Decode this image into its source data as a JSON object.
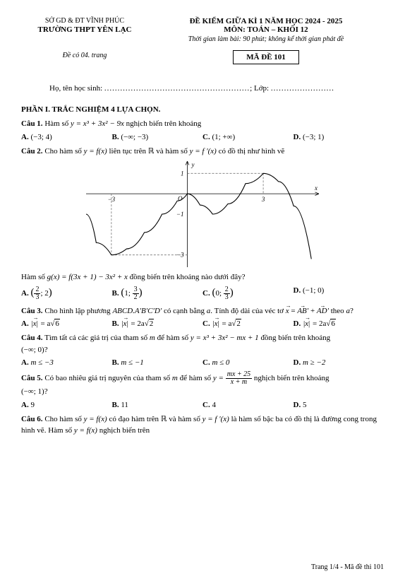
{
  "header": {
    "department": "SỞ GD & ĐT VĨNH PHÚC",
    "school": "TRƯỜNG THPT YÊN LẠC",
    "page_note": "Đề có 04. trang",
    "exam_title": "ĐỀ KIỂM GIỮA KÌ 1 NĂM HỌC 2024 - 2025",
    "subject": "MÔN: TOÁN – KHỐI 12",
    "time": "Thời gian làm bài: 90 phút; không kể thời gian phát đề",
    "code_label": "MÃ ĐỀ 101"
  },
  "name_line": {
    "prefix": "Họ, tên học sinh: ",
    "dots1": ".......................................................",
    "class_prefix": "; Lớp: ",
    "dots2": "........................"
  },
  "section1_title": "PHẦN I. TRẮC NGHIỆM 4 LỰA CHỌN.",
  "q1": {
    "label": "Câu 1.",
    "stem_a": " Hàm số ",
    "formula": "y = x³ + 3x² − 9x",
    "stem_b": " nghịch biến trên khoảng",
    "A": "(−3; 4)",
    "B": "(−∞; −3)",
    "C": "(1; +∞)",
    "D": "(−3; 1)"
  },
  "q2": {
    "label": "Câu 2.",
    "stem_a": " Cho hàm số ",
    "f1": "y = f(x)",
    "stem_b": " liên tục trên ",
    "R": "ℝ",
    "stem_c": " và hàm số ",
    "f2": "y = f ′(x)",
    "stem_d": " có đồ thị như hình vẽ",
    "graph": {
      "x_range": [
        -4,
        5.2
      ],
      "y_range": [
        -3.6,
        1.6
      ],
      "ticks_x": [
        -3,
        3
      ],
      "ticks_y": [
        1,
        -1,
        -3
      ],
      "curve_color": "#000000",
      "axis_color": "#000000",
      "dash_color": "#777777",
      "y_label": "y",
      "x_label": "x",
      "origin": "O"
    },
    "tail_a": "Hàm số ",
    "tail_f": "g(x) = f(3x + 1) − 3x² + x",
    "tail_b": " đồng biến trên khoảng nào dưới đây?",
    "A": [
      "2",
      "3",
      "2"
    ],
    "B": [
      "1",
      "3",
      "2"
    ],
    "C": [
      "0",
      "2",
      "3"
    ],
    "D": "(−1; 0)"
  },
  "q3": {
    "label": "Câu 3.",
    "stem_a": " Cho hình lập phương ",
    "cube": "ABCD.A′B′C′D′",
    "stem_b": " có cạnh bằng ",
    "a": "a",
    "stem_c": ". Tính độ dài của véc tơ ",
    "vec_eq_pre": "x",
    "vec_eq": " = AB′ + AD′",
    "stem_d": " theo ",
    "a2": "a",
    "q": "?",
    "A_pre": "x",
    "A_val": " = a",
    "A_rt": "6",
    "B_pre": "x",
    "B_val": " = 2a",
    "B_rt": "2",
    "C_pre": "x",
    "C_val": " = a",
    "C_rt": "2",
    "D_pre": "x",
    "D_val": " = 2a",
    "D_rt": "6"
  },
  "q4": {
    "label": "Câu 4.",
    "stem_a": " Tìm tất cả các giá trị của tham số ",
    "m": "m",
    "stem_b": " để hàm số ",
    "formula": "y = x³ + 3x² − mx + 1",
    "stem_c": " đồng biến trên khoảng",
    "interval": "(−∞; 0)",
    "q": "?",
    "A": "m ≤ −3",
    "B": "m ≤ −1",
    "C": "m ≤ 0",
    "D": "m ≥ −2"
  },
  "q5": {
    "label": "Câu 5.",
    "stem_a": " Có bao nhiêu giá trị nguyên của tham số ",
    "m": "m",
    "stem_b": " để hàm số ",
    "y_eq": "y = ",
    "num": "mx + 25",
    "den": "x + m",
    "stem_c": " nghịch biến trên khoảng",
    "interval": "(−∞; 1)",
    "q": "?",
    "A": "9",
    "B": "11",
    "C": "4",
    "D": "5"
  },
  "q6": {
    "label": "Câu 6.",
    "stem_a": " Cho hàm số ",
    "f1": "y = f(x)",
    "stem_b": " có đạo hàm trên ",
    "R": "ℝ",
    "stem_c": " và hàm số ",
    "f2": "y = f ′(x)",
    "stem_d": " là hàm số bậc ba có đồ thị là đường cong trong hình vẽ. Hàm số ",
    "f3": "y = f(x)",
    "stem_e": " nghịch biến trên"
  },
  "footer": "Trang 1/4 - Mã đề thi 101"
}
